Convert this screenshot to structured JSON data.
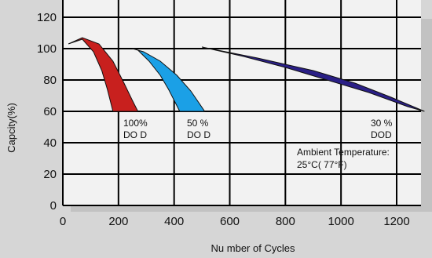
{
  "chart_data": {
    "type": "area",
    "xlabel": "Nu mber of Cycles",
    "ylabel": "Capcity(%)",
    "xlim": [
      0,
      1300
    ],
    "ylim": [
      0,
      120
    ],
    "x_ticks": [
      0,
      200,
      400,
      600,
      800,
      1000,
      1200
    ],
    "y_ticks": [
      0,
      20,
      40,
      60,
      80,
      100,
      120
    ],
    "grid": true,
    "series": [
      {
        "name": "100% DO D",
        "color": "#c8201e",
        "upper": [
          [
            20,
            103
          ],
          [
            70,
            107
          ],
          [
            130,
            103
          ],
          [
            180,
            92
          ],
          [
            220,
            78
          ],
          [
            250,
            67
          ],
          [
            270,
            60
          ]
        ],
        "lower": [
          [
            20,
            103
          ],
          [
            70,
            106
          ],
          [
            110,
            98
          ],
          [
            140,
            86
          ],
          [
            160,
            74
          ],
          [
            180,
            60
          ]
        ]
      },
      {
        "name": "50 % DO D",
        "color": "#1ba0e6",
        "upper": [
          [
            250,
            100
          ],
          [
            290,
            98
          ],
          [
            350,
            92
          ],
          [
            410,
            83
          ],
          [
            460,
            73
          ],
          [
            510,
            60
          ]
        ],
        "lower": [
          [
            250,
            100
          ],
          [
            270,
            99
          ],
          [
            310,
            92
          ],
          [
            350,
            83
          ],
          [
            380,
            74
          ],
          [
            420,
            60
          ]
        ]
      },
      {
        "name": "30 % DOD",
        "color": "#2a1f86",
        "upper": [
          [
            500,
            101
          ],
          [
            650,
            95
          ],
          [
            800,
            88
          ],
          [
            950,
            80
          ],
          [
            1100,
            72
          ],
          [
            1240,
            63
          ],
          [
            1300,
            60
          ]
        ],
        "lower": [
          [
            500,
            101
          ],
          [
            700,
            94
          ],
          [
            900,
            86
          ],
          [
            1050,
            78
          ],
          [
            1180,
            69
          ],
          [
            1300,
            60
          ]
        ]
      }
    ],
    "annotations": [
      {
        "text": "Ambient Temperature:"
      },
      {
        "text": "25°C( 77°F)"
      }
    ]
  }
}
